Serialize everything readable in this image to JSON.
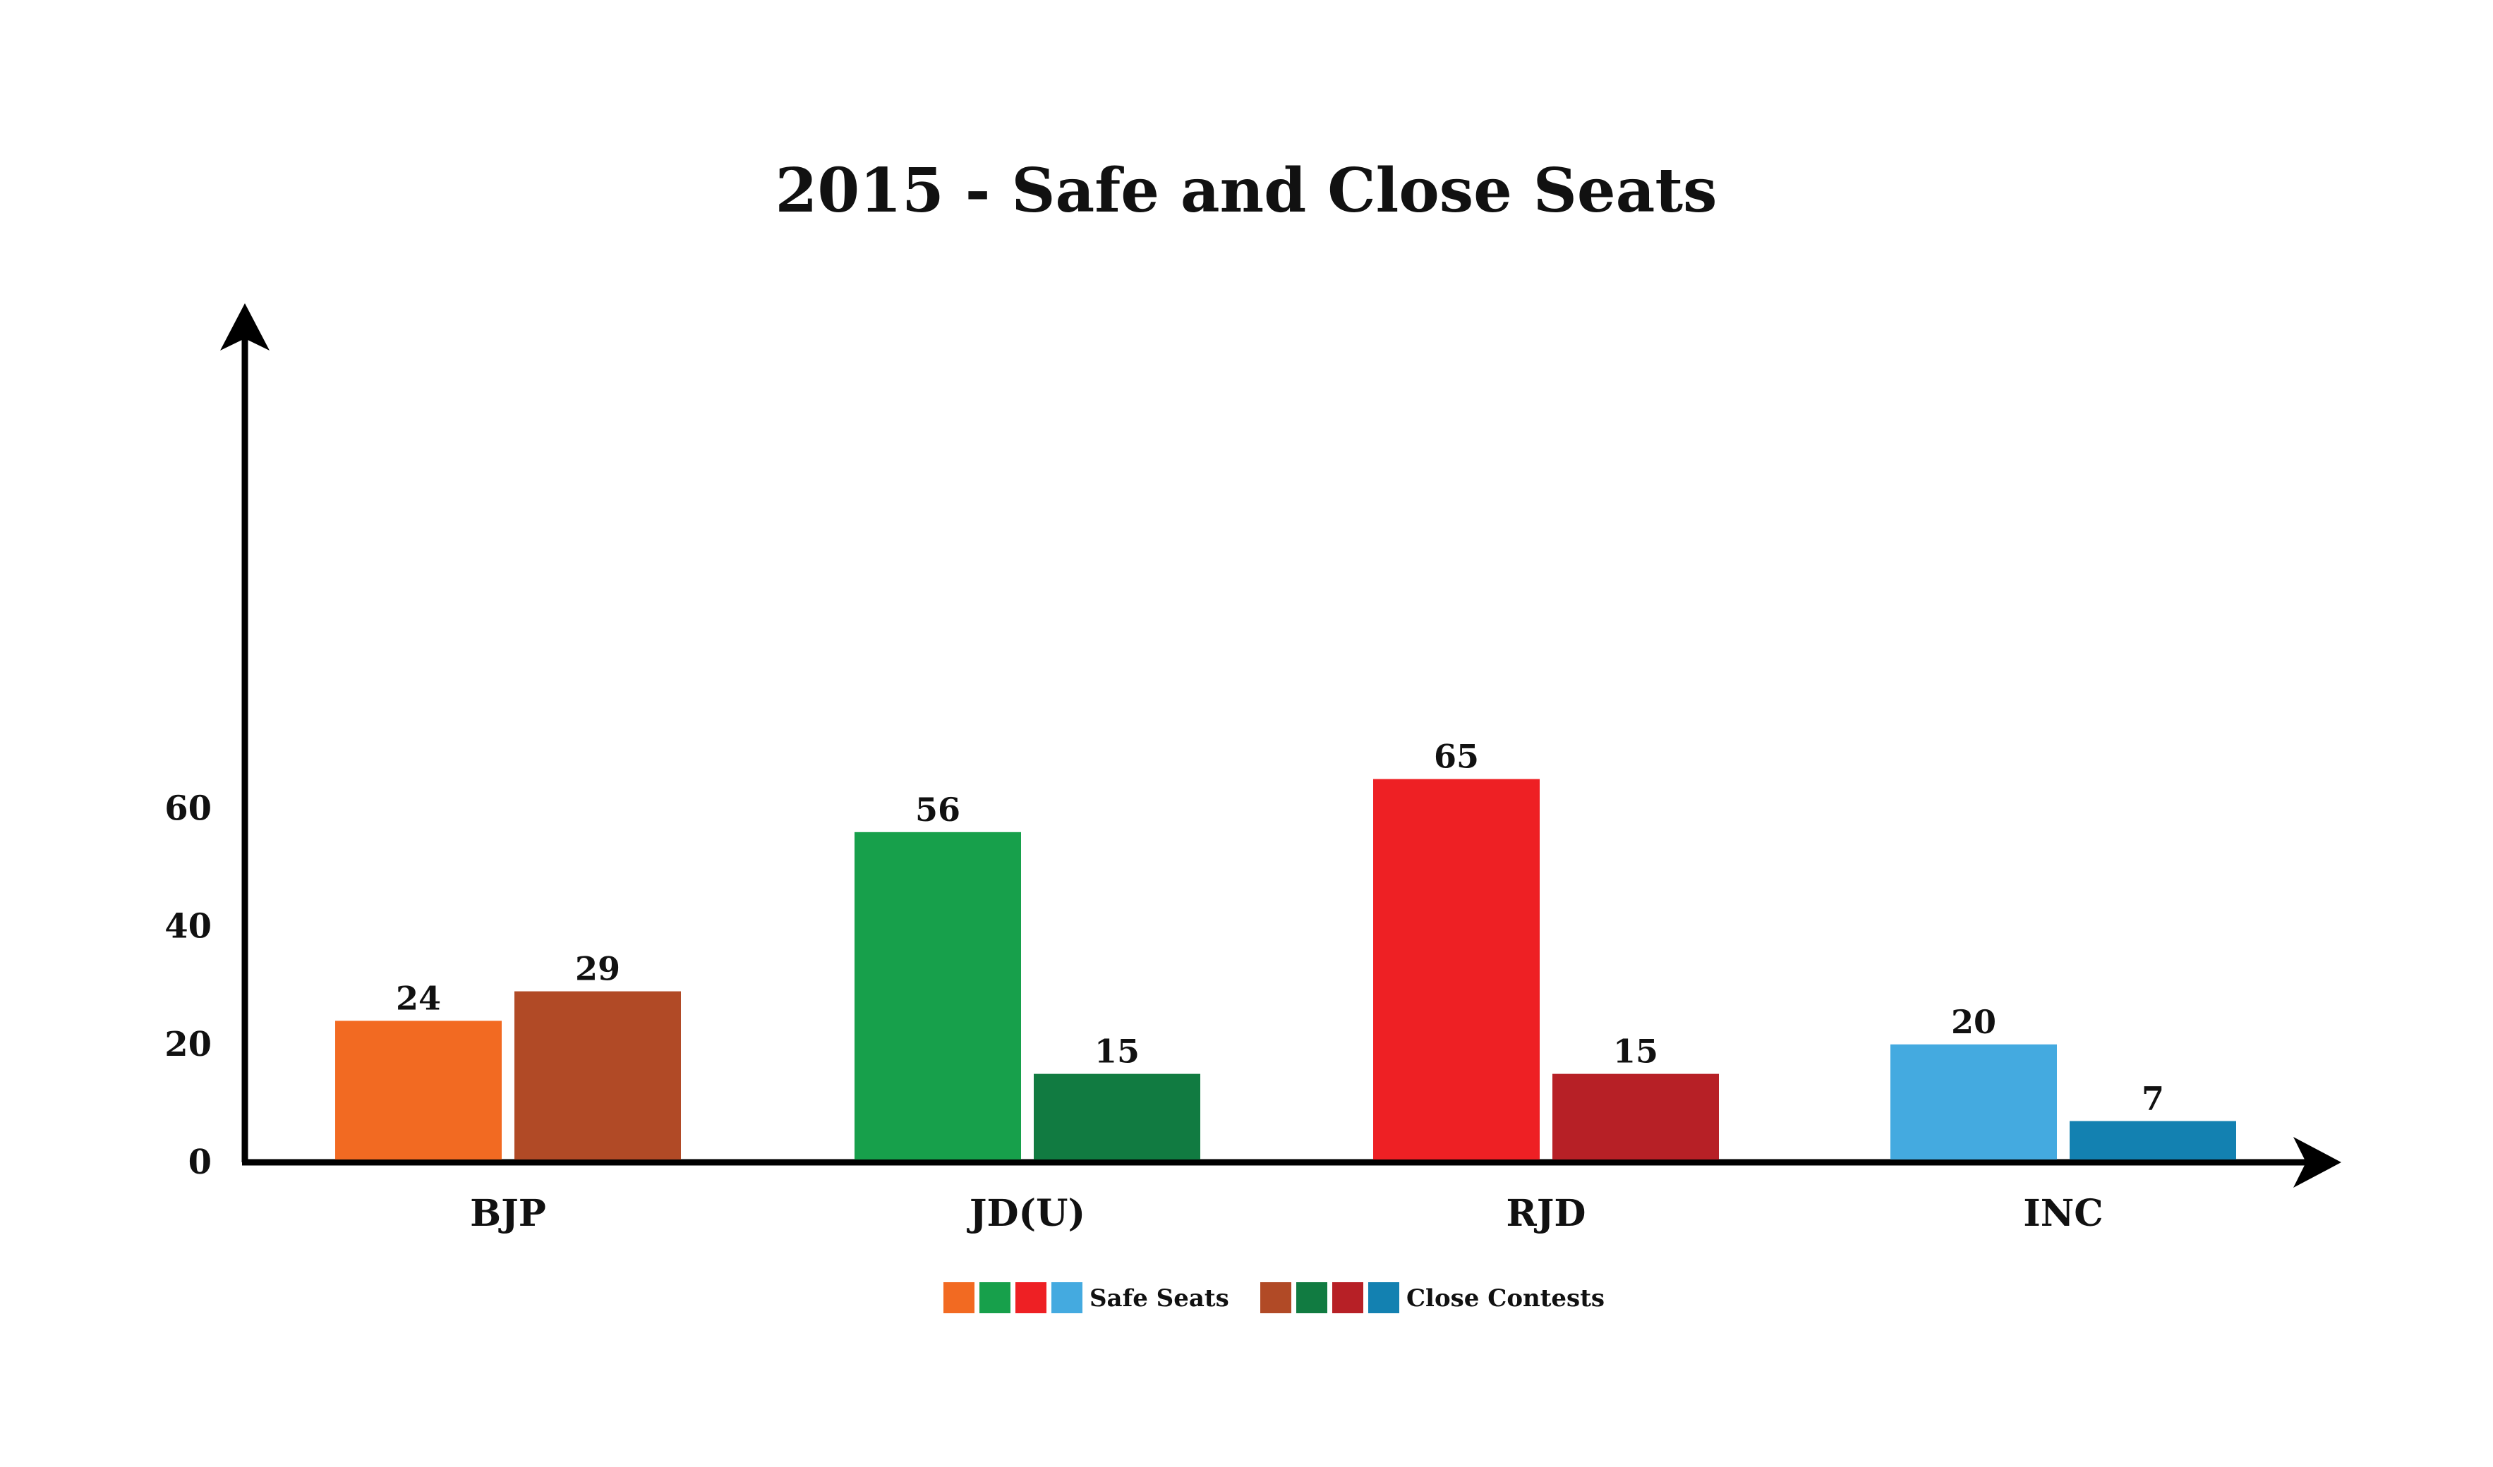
{
  "chart_data": {
    "type": "bar",
    "title": "2015 - Safe and Close Seats",
    "xlabel": "",
    "ylabel": "",
    "ylim": [
      0,
      70
    ],
    "yticks": [
      0,
      20,
      40,
      60
    ],
    "grid": false,
    "legend_position": "bottom-center",
    "categories": [
      "BJP",
      "JD(U)",
      "RJD",
      "INC"
    ],
    "series": [
      {
        "name": "Safe Seats",
        "values": [
          24,
          56,
          65,
          20
        ],
        "colors": [
          "#F26A22",
          "#17A04B",
          "#EE2024",
          "#44AAE0"
        ]
      },
      {
        "name": "Close Contests",
        "values": [
          29,
          15,
          15,
          7
        ],
        "colors": [
          "#B14A26",
          "#117B41",
          "#B72026",
          "#1381B1"
        ]
      }
    ]
  }
}
